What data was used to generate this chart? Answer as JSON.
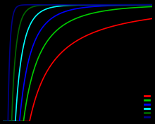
{
  "background_color": "#000000",
  "plot_bg_color": "#000000",
  "curves": [
    {
      "m": 0.1,
      "color": "#ff0000"
    },
    {
      "m": 0.5,
      "color": "#00cc00"
    },
    {
      "m": 1.0,
      "color": "#0000ff"
    },
    {
      "m": 2.0,
      "color": "#00ffff"
    },
    {
      "m": 4.0,
      "color": "#006600"
    },
    {
      "m": 10.0,
      "color": "#000088"
    }
  ],
  "g": 1.0,
  "xmin": 0.01,
  "xmax": 5.0,
  "ymin": -1.02,
  "ymax": 0.02,
  "linewidth": 1.2,
  "legend_colors": [
    "#ff0000",
    "#00cc00",
    "#0000ff",
    "#00ffff",
    "#006600",
    "#000088"
  ]
}
